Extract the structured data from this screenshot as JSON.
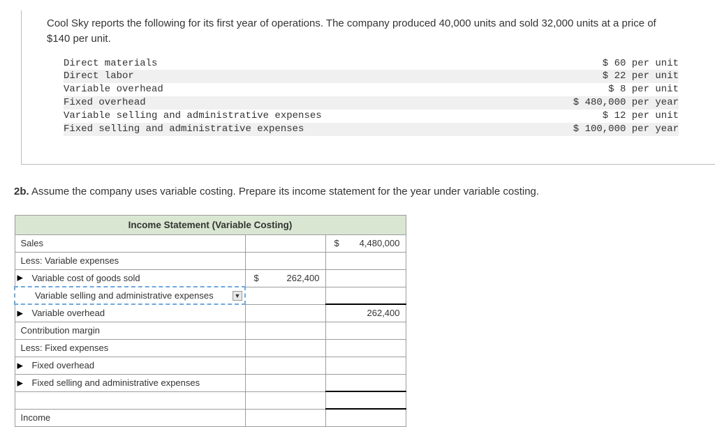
{
  "intro": "Cool Sky reports the following for its first year of operations. The company produced 40,000 units and sold 32,000 units at a price of $140 per unit.",
  "cost_rows": [
    {
      "label": "Direct materials",
      "value": "$ 60 per unit",
      "shade": false
    },
    {
      "label": "Direct labor",
      "value": "$ 22 per unit",
      "shade": true
    },
    {
      "label": "Variable overhead",
      "value": "$ 8 per unit",
      "shade": false
    },
    {
      "label": "Fixed overhead",
      "value": "$ 480,000 per year",
      "shade": true
    },
    {
      "label": "Variable selling and administrative expenses",
      "value": "$ 12 per unit",
      "shade": false
    },
    {
      "label": "Fixed selling and administrative expenses",
      "value": "$ 100,000 per year",
      "shade": true
    }
  ],
  "subq": {
    "num": "2b.",
    "text": "Assume the company uses variable costing. Prepare its income statement for the year under variable costing."
  },
  "table": {
    "title": "Income Statement (Variable Costing)",
    "rows": [
      {
        "type": "line",
        "label": "Sales",
        "tick": false,
        "indent": 0,
        "c1": "",
        "c2": "$4,480,000",
        "c2dollar": true
      },
      {
        "type": "line",
        "label": "Less: Variable expenses",
        "tick": false,
        "indent": 0,
        "c1": "",
        "c2": ""
      },
      {
        "type": "line",
        "label": "Variable cost of goods sold",
        "tick": true,
        "indent": 1,
        "c1": "$262,400",
        "c1dollar": true,
        "c2": ""
      },
      {
        "type": "dd",
        "label": "Variable selling and administrative expenses",
        "tick": false,
        "indent": 2,
        "c1": "",
        "c2": ""
      },
      {
        "type": "line",
        "label": "Variable overhead",
        "tick": true,
        "indent": 1,
        "c1": "",
        "c2": "262,400",
        "c2topline": true
      },
      {
        "type": "line",
        "label": "Contribution margin",
        "tick": false,
        "indent": 0,
        "c1": "",
        "c2": ""
      },
      {
        "type": "line",
        "label": "Less: Fixed expenses",
        "tick": false,
        "indent": 0,
        "c1": "",
        "c2": ""
      },
      {
        "type": "line",
        "label": "Fixed overhead",
        "tick": true,
        "indent": 1,
        "c1": "",
        "c2": ""
      },
      {
        "type": "line",
        "label": "Fixed selling and administrative expenses",
        "tick": true,
        "indent": 1,
        "c1": "",
        "c2": ""
      },
      {
        "type": "line",
        "label": "",
        "tick": false,
        "indent": 0,
        "c1": "",
        "c2": "",
        "c2topline": true
      },
      {
        "type": "line",
        "label": "Income",
        "tick": false,
        "indent": 0,
        "c1": "",
        "c2": "",
        "c2topline": true
      }
    ]
  }
}
